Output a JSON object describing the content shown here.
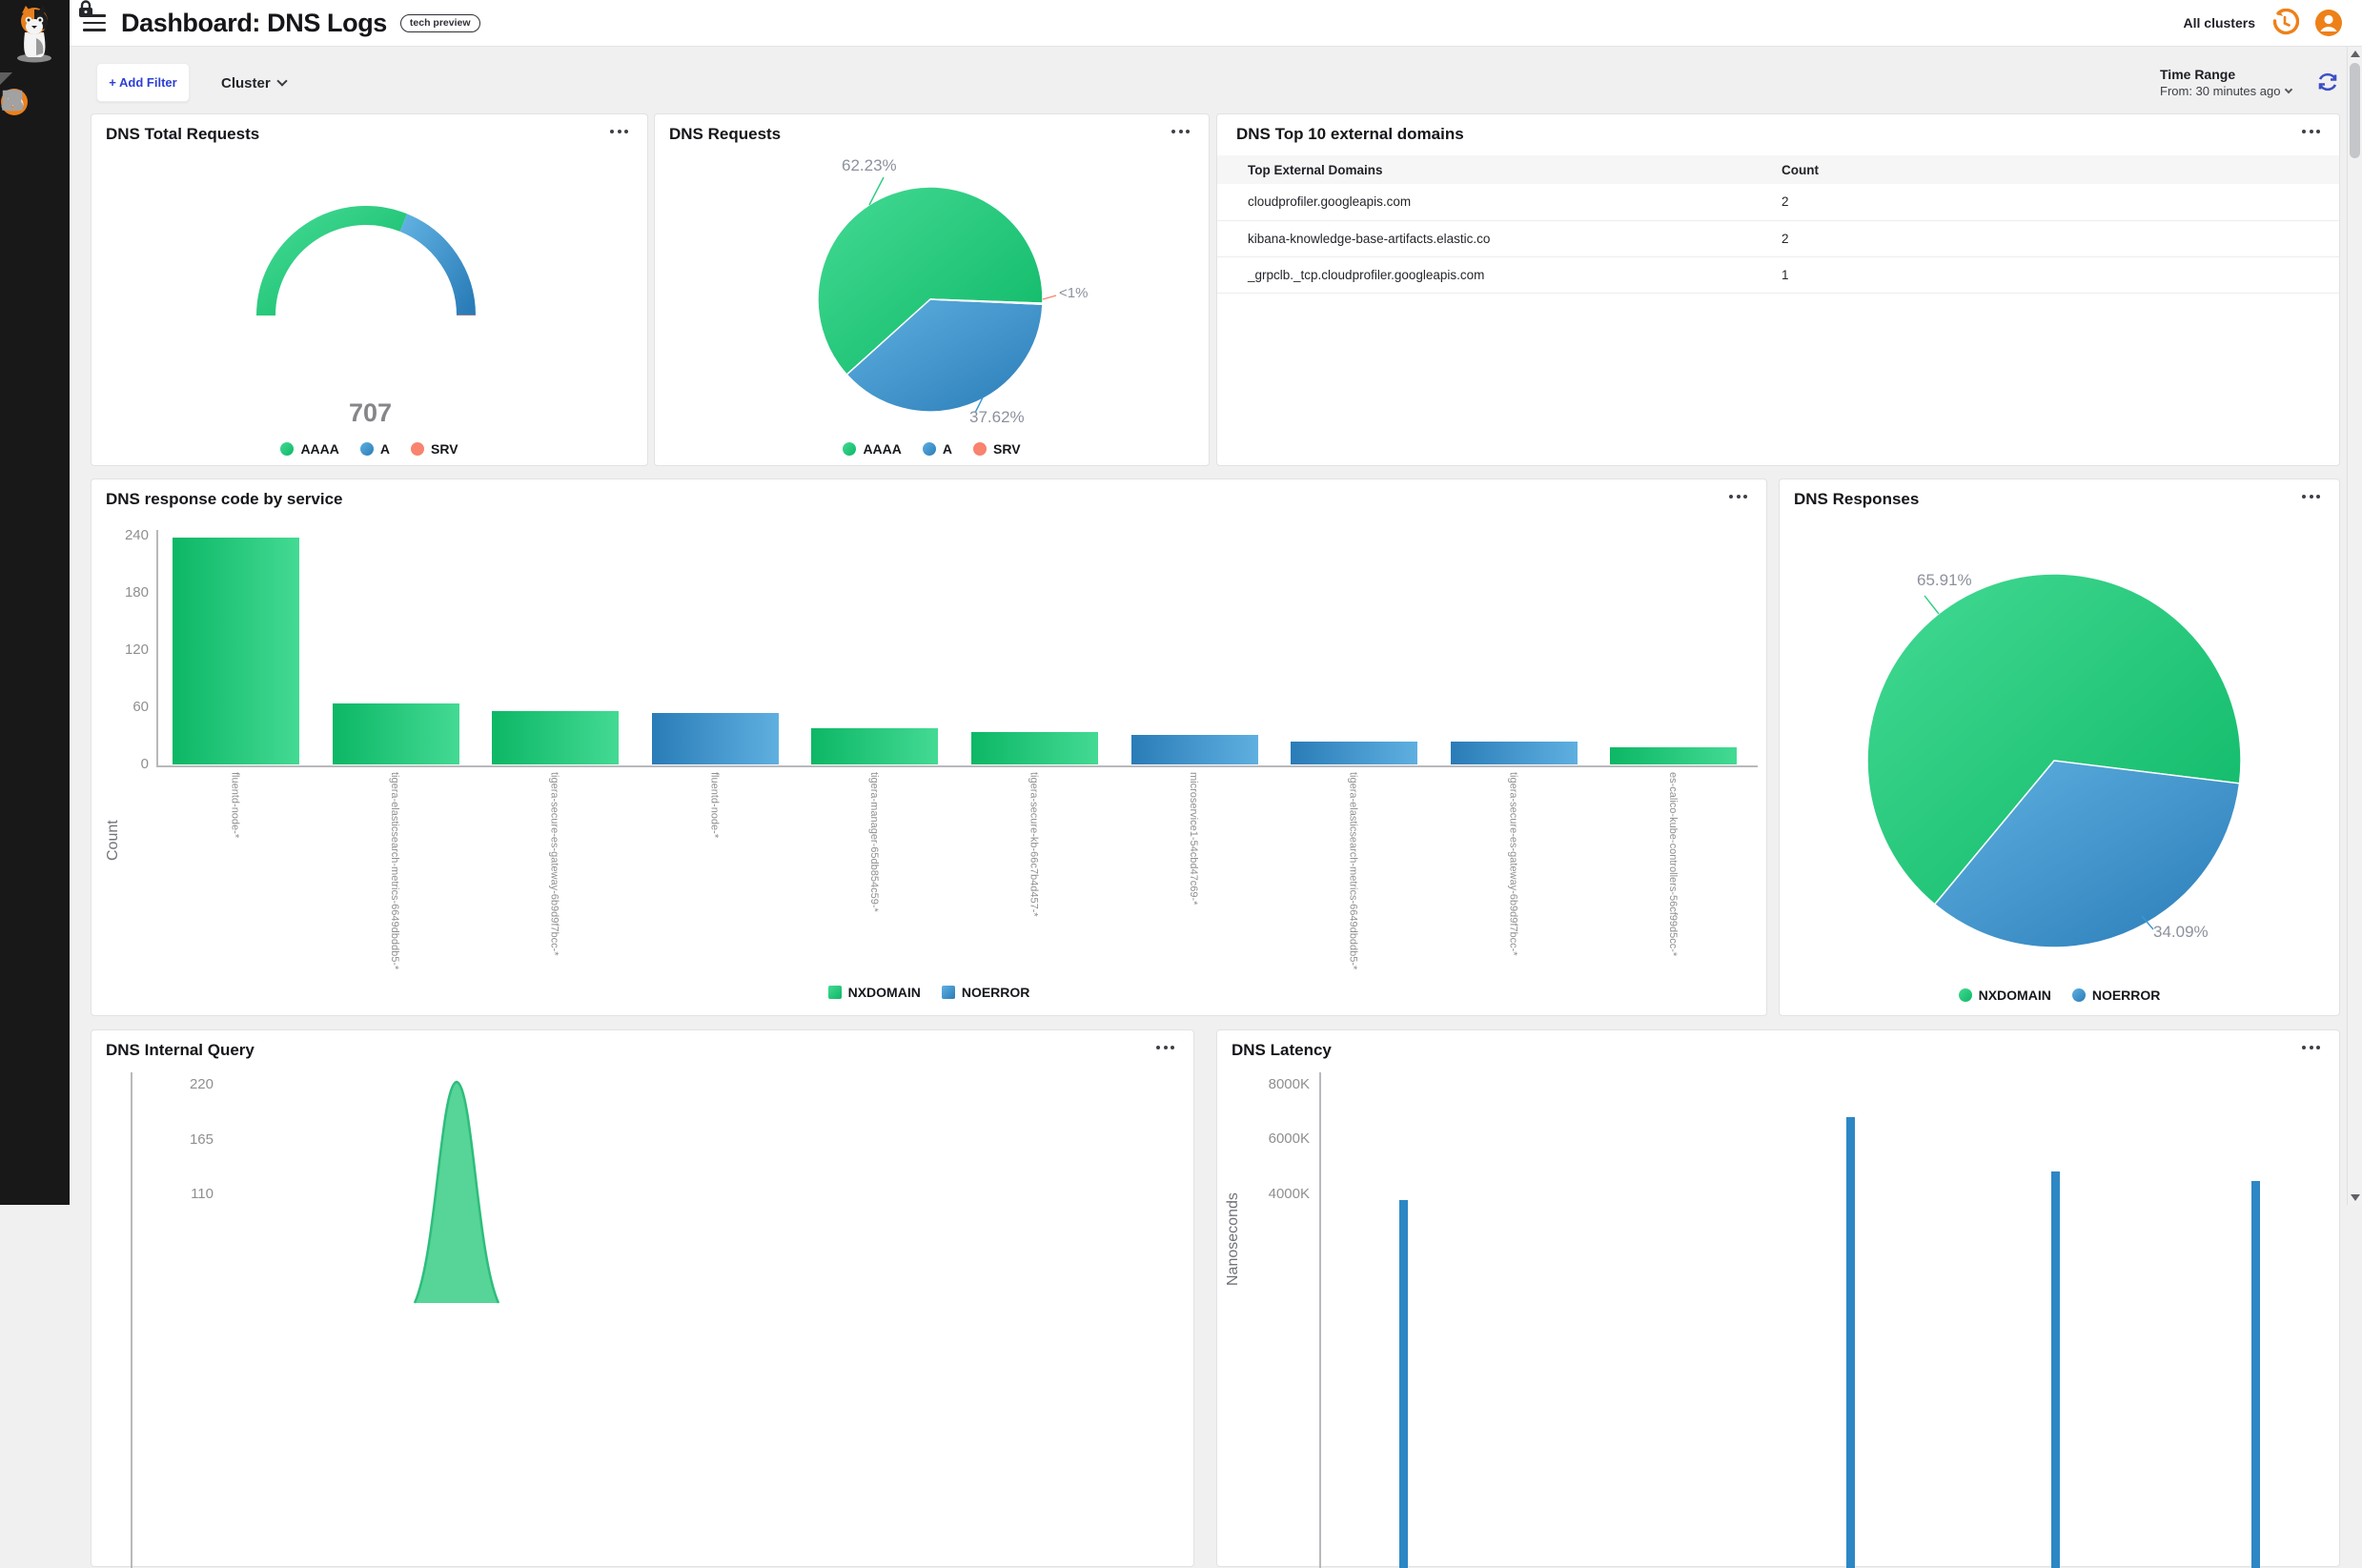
{
  "header": {
    "title": "Dashboard: DNS Logs",
    "badge": "tech preview",
    "all_clusters": "All clusters"
  },
  "filter_bar": {
    "add_filter": "+ Add Filter",
    "cluster": "Cluster",
    "time_range_label": "Time Range",
    "time_range_value": "From: 30 minutes ago"
  },
  "sidebar": {
    "icons": [
      "dashboard",
      "service-graph",
      "policies",
      "flow-visualizations",
      "network-topology",
      "clusters",
      "compliance-reports",
      "statistics",
      "trends",
      "threat-defense"
    ],
    "active": "dashboard",
    "accent_color": "#ef7f19"
  },
  "colors": {
    "green_light": "#44da94",
    "green_dark": "#0cb765",
    "blue_light": "#5fb0e0",
    "blue_dark": "#2a7cb8",
    "salmon": "#f8836e",
    "latency_blue": "#2d87c5",
    "brand_orange": "#ef7f19",
    "link_blue": "#2d3fd3"
  },
  "panels": {
    "total_requests": {
      "title": "DNS Total Requests"
    },
    "requests": {
      "title": "DNS Requests"
    },
    "top_domains": {
      "title": "DNS Top 10 external domains",
      "columns": [
        "Top External Domains",
        "Count"
      ],
      "rows": [
        [
          "cloudprofiler.googleapis.com",
          "2"
        ],
        [
          "kibana-knowledge-base-artifacts.elastic.co",
          "2"
        ],
        [
          "_grpclb._tcp.cloudprofiler.googleapis.com",
          "1"
        ]
      ]
    },
    "response_code": {
      "title": "DNS response code by service"
    },
    "responses": {
      "title": "DNS Responses"
    },
    "internal_query": {
      "title": "DNS Internal Query"
    },
    "latency": {
      "title": "DNS Latency"
    }
  },
  "chart_data": [
    {
      "id": "dns_total_requests",
      "type": "gauge",
      "value": "707",
      "segments": [
        {
          "label": "AAAA",
          "pct": 62.23,
          "color": "green"
        },
        {
          "label": "A",
          "pct": 37.62,
          "color": "blue"
        },
        {
          "label": "SRV",
          "pct": 0.15,
          "color": "salmon"
        }
      ],
      "legend": [
        {
          "label": "AAAA",
          "color": "green"
        },
        {
          "label": "A",
          "color": "blue"
        },
        {
          "label": "SRV",
          "color": "salmon"
        }
      ]
    },
    {
      "id": "dns_requests",
      "type": "pie",
      "start_angle": -2,
      "slices": [
        {
          "label": "AAAA",
          "pct": 62.23,
          "display": "62.23%",
          "color": "green"
        },
        {
          "label": "A",
          "pct": 37.62,
          "display": "37.62%",
          "color": "blue"
        },
        {
          "label": "SRV",
          "pct": 0.15,
          "display": "<1%",
          "color": "salmon"
        }
      ],
      "legend": [
        {
          "label": "AAAA",
          "color": "green"
        },
        {
          "label": "A",
          "color": "blue"
        },
        {
          "label": "SRV",
          "color": "salmon"
        }
      ]
    },
    {
      "id": "dns_response_code_by_service",
      "type": "bar",
      "ylabel": "Count",
      "yticks": [
        240,
        180,
        120,
        60,
        0
      ],
      "ylim": [
        0,
        240
      ],
      "categories": [
        "fluentd-node-*",
        "tigera-elasticsearch-metrics-6649dbddb5-*",
        "tigera-secure-es-gateway-6b9d9f7bcc-*",
        "fluentd-node-*",
        "tigera-manager-65db854c59-*",
        "tigera-secure-kb-66c7b4d457-*",
        "microservice1-54cbd47c69-*",
        "tigera-elasticsearch-metrics-6649dbddb5-*",
        "tigera-secure-es-gateway-6b9d9f7bcc-*",
        "es-calico-kube-controllers-56cf99d5cc-*"
      ],
      "values": [
        238,
        64,
        56,
        54,
        38,
        34,
        31,
        24,
        24,
        18
      ],
      "bar_colors": [
        "green",
        "green",
        "green",
        "blue",
        "green",
        "green",
        "blue",
        "blue",
        "blue",
        "green"
      ],
      "legend": [
        {
          "label": "NXDOMAIN",
          "color": "green"
        },
        {
          "label": "NOERROR",
          "color": "blue"
        }
      ]
    },
    {
      "id": "dns_responses",
      "type": "pie",
      "start_angle": -7,
      "slices": [
        {
          "label": "NXDOMAIN",
          "pct": 65.91,
          "display": "65.91%",
          "color": "green"
        },
        {
          "label": "NOERROR",
          "pct": 34.09,
          "display": "34.09%",
          "color": "blue"
        }
      ],
      "legend": [
        {
          "label": "NXDOMAIN",
          "color": "green"
        },
        {
          "label": "NOERROR",
          "color": "blue"
        }
      ]
    },
    {
      "id": "dns_internal_query",
      "type": "area",
      "yticks_visible": [
        220,
        165,
        110
      ],
      "peak_value": 222,
      "color": "green"
    },
    {
      "id": "dns_latency",
      "type": "bar",
      "ylabel": "Nanoseconds",
      "yticks_visible": [
        "8000K",
        "6000K",
        "4000K"
      ],
      "values_k": [
        3750,
        6800,
        4800,
        4450
      ],
      "color": "blue"
    }
  ]
}
